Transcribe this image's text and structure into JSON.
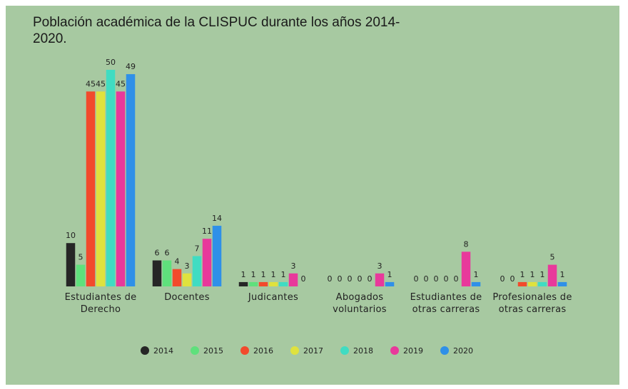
{
  "chart_data": {
    "type": "bar",
    "title": "Población académica de la CLISPUC durante los años 2014-2020.",
    "categories": [
      "Estudiantes de Derecho",
      "Docentes",
      "Judicantes",
      "Abogados voluntarios",
      "Estudiantes de otras carreras",
      "Profesionales de otras carreras"
    ],
    "series": [
      {
        "name": "2014",
        "color": "#262626",
        "values": [
          10,
          6,
          1,
          0,
          0,
          0
        ]
      },
      {
        "name": "2015",
        "color": "#5fe07c",
        "values": [
          5,
          6,
          1,
          0,
          0,
          0
        ]
      },
      {
        "name": "2016",
        "color": "#f24a2c",
        "values": [
          45,
          4,
          1,
          0,
          0,
          1
        ]
      },
      {
        "name": "2017",
        "color": "#dfe23e",
        "values": [
          45,
          3,
          1,
          0,
          0,
          1
        ]
      },
      {
        "name": "2018",
        "color": "#40dcc2",
        "values": [
          50,
          7,
          1,
          0,
          0,
          1
        ]
      },
      {
        "name": "2019",
        "color": "#e8399b",
        "values": [
          45,
          11,
          3,
          3,
          8,
          5
        ]
      },
      {
        "name": "2020",
        "color": "#2f90e8",
        "values": [
          49,
          14,
          0,
          1,
          1,
          1
        ]
      }
    ],
    "legend": "bottom"
  }
}
